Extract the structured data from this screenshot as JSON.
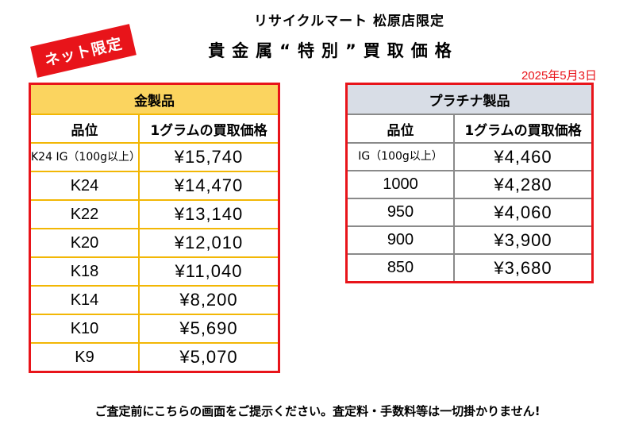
{
  "header": {
    "store_title": "リサイクルマート 松原店限定",
    "main_title": "貴金属“特別”買取価格",
    "badge": "ネット限定",
    "date": "2025年5月3日"
  },
  "gold": {
    "category": "金製品",
    "col_grade": "品位",
    "col_price": "1グラムの買取価格",
    "rows": [
      {
        "grade": "K24 IG（100g以上）",
        "price": "¥15,740"
      },
      {
        "grade": "K24",
        "price": "¥14,470"
      },
      {
        "grade": "K22",
        "price": "¥13,140"
      },
      {
        "grade": "K20",
        "price": "¥12,010"
      },
      {
        "grade": "K18",
        "price": "¥11,040"
      },
      {
        "grade": "K14",
        "price": "¥8,200"
      },
      {
        "grade": "K10",
        "price": "¥5,690"
      },
      {
        "grade": "K9",
        "price": "¥5,070"
      }
    ]
  },
  "platinum": {
    "category": "プラチナ製品",
    "col_grade": "品位",
    "col_price": "1グラムの買取価格",
    "rows": [
      {
        "grade": "IG（100g以上）",
        "price": "¥4,460"
      },
      {
        "grade": "1000",
        "price": "¥4,280"
      },
      {
        "grade": "950",
        "price": "¥4,060"
      },
      {
        "grade": "900",
        "price": "¥3,900"
      },
      {
        "grade": "850",
        "price": "¥3,680"
      }
    ]
  },
  "footer": {
    "note": "ご査定前にこちらの画面をご提示ください。査定料・手数料等は一切掛かりません!"
  },
  "colors": {
    "accent_red": "#e8141a",
    "gold_header": "#fbd45f",
    "gold_border": "#f2b705",
    "platinum_header": "#d8dde6",
    "platinum_border": "#8a8a8a"
  }
}
